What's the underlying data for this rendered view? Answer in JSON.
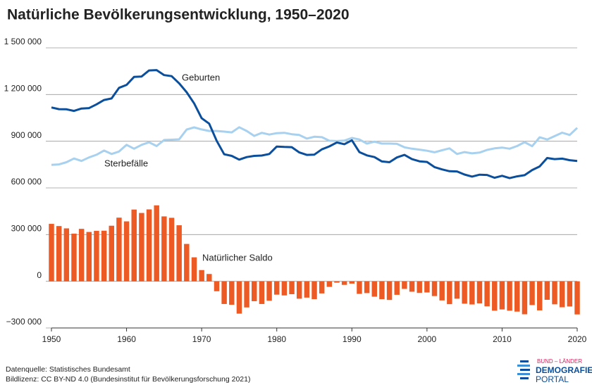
{
  "chart_data": {
    "type": "combo",
    "title": "Natürliche Bevölkerungsentwicklung, 1950–2020",
    "x": [
      1950,
      1951,
      1952,
      1953,
      1954,
      1955,
      1956,
      1957,
      1958,
      1959,
      1960,
      1961,
      1962,
      1963,
      1964,
      1965,
      1966,
      1967,
      1968,
      1969,
      1970,
      1971,
      1972,
      1973,
      1974,
      1975,
      1976,
      1977,
      1978,
      1979,
      1980,
      1981,
      1982,
      1983,
      1984,
      1985,
      1986,
      1987,
      1988,
      1989,
      1990,
      1991,
      1992,
      1993,
      1994,
      1995,
      1996,
      1997,
      1998,
      1999,
      2000,
      2001,
      2002,
      2003,
      2004,
      2005,
      2006,
      2007,
      2008,
      2009,
      2010,
      2011,
      2012,
      2013,
      2014,
      2015,
      2016,
      2017,
      2018,
      2019,
      2020
    ],
    "xlim": [
      1950,
      2020
    ],
    "xticks": [
      1950,
      1960,
      1970,
      1980,
      1990,
      2000,
      2010,
      2020
    ],
    "ylim": [
      -300000,
      1500000
    ],
    "yticks": [
      {
        "value": -300000,
        "label": "−300 000"
      },
      0,
      {
        "value": 300000,
        "label": "300 000"
      },
      {
        "value": 600000,
        "label": "600 000"
      },
      {
        "value": 900000,
        "label": "900 000"
      },
      {
        "value": 1200000,
        "label": "1 200 000"
      },
      {
        "value": 1500000,
        "label": "1 500 000"
      }
    ],
    "grid": true,
    "series": [
      {
        "name": "Natürlicher Saldo",
        "type": "bar",
        "color": "#ee5a24",
        "values": [
          369000,
          355000,
          340000,
          306000,
          337000,
          317000,
          324000,
          325000,
          357000,
          409000,
          385000,
          461000,
          439000,
          462000,
          488000,
          417000,
          408000,
          360000,
          240000,
          154000,
          72000,
          47000,
          -64000,
          -146000,
          -151000,
          -208000,
          -168000,
          -128000,
          -146000,
          -125000,
          -86000,
          -91000,
          -83000,
          -112000,
          -105000,
          -115000,
          -78000,
          -36000,
          -9000,
          -23000,
          -15000,
          -81000,
          -76000,
          -99000,
          -115000,
          -120000,
          -87000,
          -49000,
          -67000,
          -75000,
          -72000,
          -95000,
          -123000,
          -147000,
          -112000,
          -144000,
          -149000,
          -142000,
          -161000,
          -189000,
          -181000,
          -189000,
          -195000,
          -212000,
          -153000,
          -187000,
          -119000,
          -148000,
          -167000,
          -162000,
          -213000
        ]
      },
      {
        "name": "Sterbefälle",
        "type": "line",
        "color": "#a7d1ee",
        "values": [
          748000,
          751000,
          765000,
          789000,
          773000,
          796000,
          813000,
          840000,
          818000,
          834000,
          877000,
          852000,
          877000,
          893000,
          869000,
          908000,
          910000,
          912000,
          975000,
          989000,
          976000,
          966000,
          966000,
          962000,
          957000,
          990000,
          966000,
          934000,
          954000,
          943000,
          952000,
          954000,
          945000,
          940000,
          917000,
          929000,
          926000,
          903000,
          901000,
          904000,
          921000,
          911000,
          885000,
          897000,
          885000,
          885000,
          883000,
          861000,
          852000,
          846000,
          839000,
          829000,
          842000,
          854000,
          818000,
          830000,
          822000,
          827000,
          844000,
          854000,
          859000,
          852000,
          869000,
          894000,
          868000,
          925000,
          911000,
          933000,
          955000,
          940000,
          986000
        ]
      },
      {
        "name": "Geburten",
        "type": "line",
        "color": "#0b4f9c",
        "values": [
          1117000,
          1106000,
          1105000,
          1095000,
          1110000,
          1113000,
          1137000,
          1165000,
          1175000,
          1243000,
          1262000,
          1313000,
          1316000,
          1355000,
          1357000,
          1325000,
          1318000,
          1272000,
          1215000,
          1143000,
          1048000,
          1013000,
          902000,
          816000,
          806000,
          782000,
          798000,
          806000,
          808000,
          818000,
          866000,
          863000,
          862000,
          828000,
          812000,
          814000,
          848000,
          867000,
          892000,
          881000,
          906000,
          830000,
          809000,
          798000,
          770000,
          765000,
          796000,
          812000,
          785000,
          771000,
          767000,
          734000,
          719000,
          707000,
          706000,
          686000,
          673000,
          685000,
          683000,
          665000,
          678000,
          663000,
          674000,
          682000,
          715000,
          738000,
          792000,
          785000,
          788000,
          778000,
          773000
        ]
      }
    ],
    "source": "Datenquelle: Statistisches Bundesamt",
    "license": "Bildlizenz: CC BY-ND 4.0 (Bundesinstitut für Bevölkerungsforschung 2021)",
    "logo": {
      "line1": "BUND – LÄNDER",
      "line2": "DEMOGRAFIE",
      "line3": "PORTAL"
    }
  }
}
